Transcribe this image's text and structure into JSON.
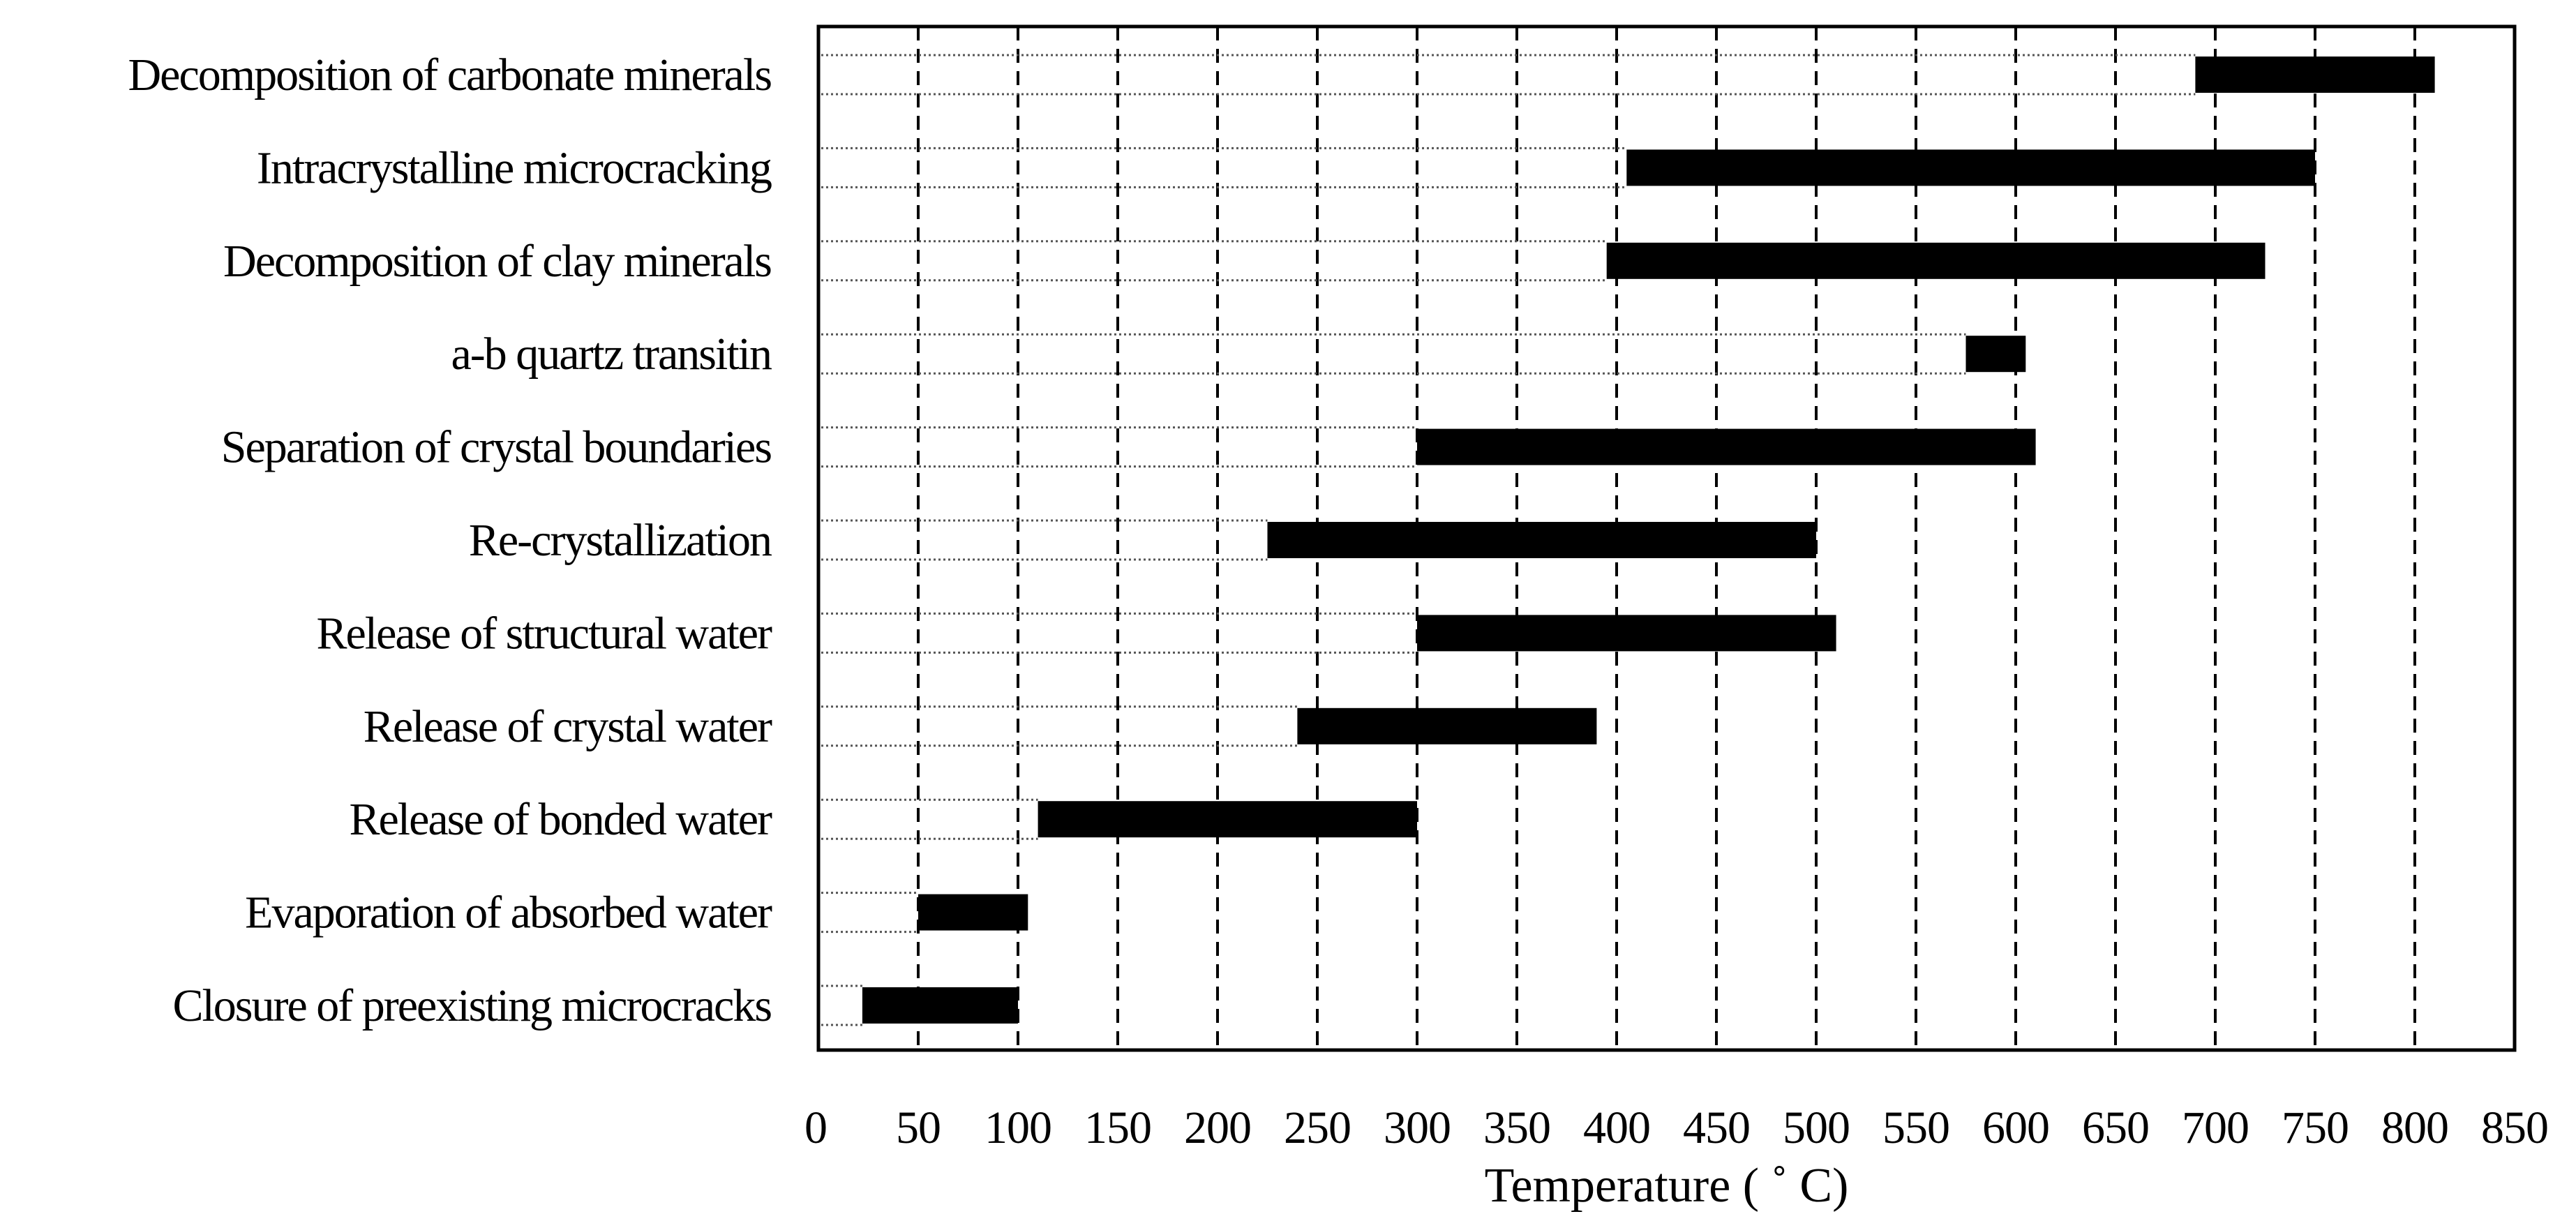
{
  "chart_data": {
    "type": "bar",
    "orientation": "horizontal-range",
    "title": "",
    "xlabel": "Temperature ( ˚ C)",
    "ylabel": "",
    "xlim": [
      0,
      850
    ],
    "xticks": [
      "0",
      "50",
      "100",
      "150",
      "200",
      "250",
      "300",
      "350",
      "400",
      "450",
      "500",
      "550",
      "600",
      "650",
      "700",
      "750",
      "800",
      "850"
    ],
    "grid": "vertical dashed at every 50",
    "categories": [
      "Decomposition of carbonate minerals",
      "Intracrystalline microcracking",
      "Decomposition of clay minerals",
      "a-b quartz transitin",
      "Separation of crystal boundaries",
      "Re-crystallization",
      "Release of structural water",
      "Release of crystal water",
      "Release of bonded water",
      "Evaporation of absorbed water",
      "Closure of preexisting microcracks"
    ],
    "ranges": [
      [
        690,
        810
      ],
      [
        405,
        750
      ],
      [
        395,
        725
      ],
      [
        575,
        605
      ],
      [
        300,
        610
      ],
      [
        225,
        500
      ],
      [
        300,
        510
      ],
      [
        240,
        390
      ],
      [
        110,
        300
      ],
      [
        50,
        105
      ],
      [
        22,
        100
      ]
    ],
    "colors": {
      "bar": "#000000",
      "grid": "#000000",
      "leader": "#555555"
    }
  }
}
